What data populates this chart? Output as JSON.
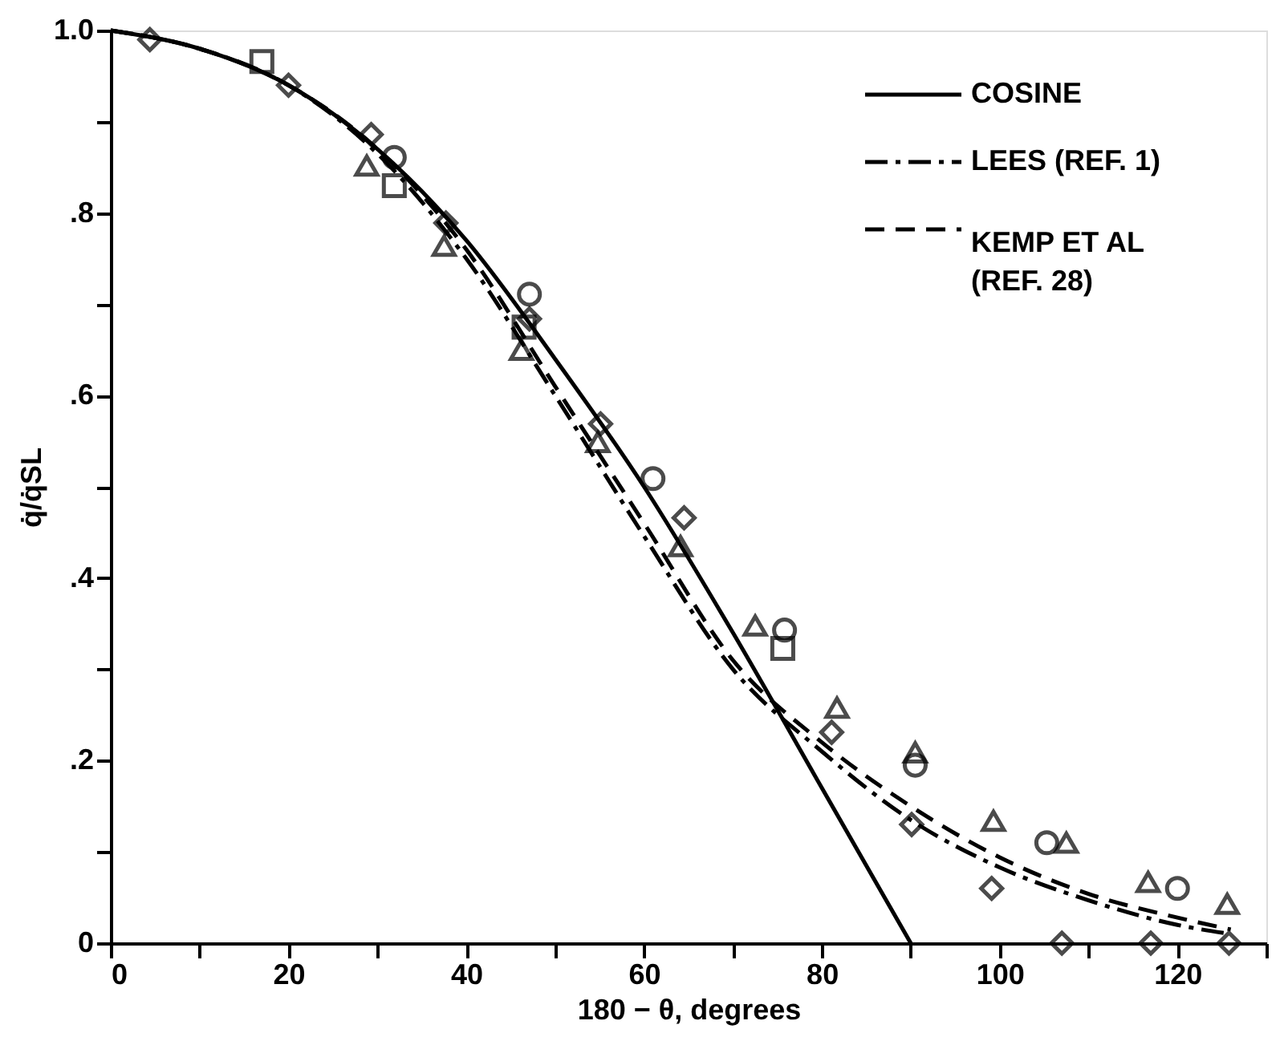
{
  "chart_data": {
    "type": "line",
    "xlabel": "180 − θ, degrees",
    "ylabel": "q̇/q̇SL",
    "xlim": [
      0,
      130
    ],
    "ylim": [
      0,
      1.0
    ],
    "xticks": [
      0,
      {
        "value": 10,
        "label": null
      },
      20,
      {
        "value": 30,
        "label": null
      },
      40,
      {
        "value": 50,
        "label": null
      },
      60,
      {
        "value": 70,
        "label": null
      },
      80,
      {
        "value": 90,
        "label": null
      },
      100,
      {
        "value": 110,
        "label": null
      },
      120,
      {
        "value": 130,
        "label": null
      }
    ],
    "yticks": [
      {
        "value": 0,
        "label": "0"
      },
      {
        "value": 0.1,
        "label": null
      },
      {
        "value": 0.2,
        "label": ".2"
      },
      {
        "value": 0.3,
        "label": null
      },
      {
        "value": 0.4,
        "label": ".4"
      },
      {
        "value": 0.5,
        "label": null
      },
      {
        "value": 0.6,
        "label": ".6"
      },
      {
        "value": 0.7,
        "label": null
      },
      {
        "value": 0.8,
        "label": ".8"
      },
      {
        "value": 0.9,
        "label": null
      },
      {
        "value": 1.0,
        "label": "1.0"
      }
    ],
    "grid": false,
    "legend": "top right",
    "series": [
      {
        "name": "COSINE",
        "line_style": "solid",
        "color": "#000000",
        "x": [
          0,
          10,
          20,
          30,
          40,
          50,
          60,
          70,
          80,
          90
        ],
        "values": [
          1.0,
          0.98,
          0.94,
          0.87,
          0.77,
          0.64,
          0.5,
          0.34,
          0.17,
          0.0
        ]
      },
      {
        "name": "LEES (REF. 1)",
        "line_style": "dashdot",
        "color": "#000000",
        "x": [
          0,
          10,
          20,
          30,
          40,
          50,
          60,
          70,
          80,
          90,
          100,
          110,
          120,
          126
        ],
        "values": [
          1.0,
          0.98,
          0.94,
          0.865,
          0.75,
          0.6,
          0.446,
          0.3,
          0.21,
          0.135,
          0.083,
          0.047,
          0.02,
          0.01
        ]
      },
      {
        "name": "KEMP ET AL\n(REF. 28)",
        "line_style": "dashed",
        "color": "#000000",
        "x": [
          0,
          10,
          20,
          30,
          40,
          50,
          60,
          70,
          80,
          90,
          100,
          110,
          120,
          126
        ],
        "values": [
          1.0,
          0.98,
          0.94,
          0.87,
          0.76,
          0.61,
          0.46,
          0.31,
          0.22,
          0.15,
          0.094,
          0.054,
          0.028,
          0.015
        ]
      },
      {
        "type": "scatter",
        "marker": "diamond",
        "color": "#000000",
        "x": [
          4.4,
          20,
          29.3,
          37.7,
          47.1,
          55.1,
          64.5,
          81.1,
          90.1,
          99.1,
          107,
          117,
          125.8
        ],
        "values": [
          0.99,
          0.94,
          0.886,
          0.789,
          0.684,
          0.569,
          0.466,
          0.231,
          0.13,
          0.06,
          0.0,
          0.0,
          0.0
        ]
      },
      {
        "type": "scatter",
        "marker": "square",
        "color": "#000000",
        "x": [
          17.0,
          31.9,
          46.5,
          75.6
        ],
        "values": [
          0.966,
          0.83,
          0.675,
          0.323
        ]
      },
      {
        "type": "scatter",
        "marker": "circle",
        "color": "#000000",
        "x": [
          31.9,
          47.1,
          61,
          75.8,
          90.5,
          105.3,
          120
        ],
        "values": [
          0.861,
          0.711,
          0.509,
          0.343,
          0.195,
          0.11,
          0.06
        ]
      },
      {
        "type": "scatter",
        "marker": "triangle",
        "color": "#000000",
        "x": [
          28.8,
          37.5,
          46.2,
          54.8,
          64.1,
          72.5,
          81.7,
          90.5,
          99.3,
          107.5,
          116.7,
          125.6
        ],
        "values": [
          0.852,
          0.764,
          0.65,
          0.549,
          0.435,
          0.348,
          0.258,
          0.209,
          0.134,
          0.11,
          0.067,
          0.043
        ]
      }
    ]
  }
}
